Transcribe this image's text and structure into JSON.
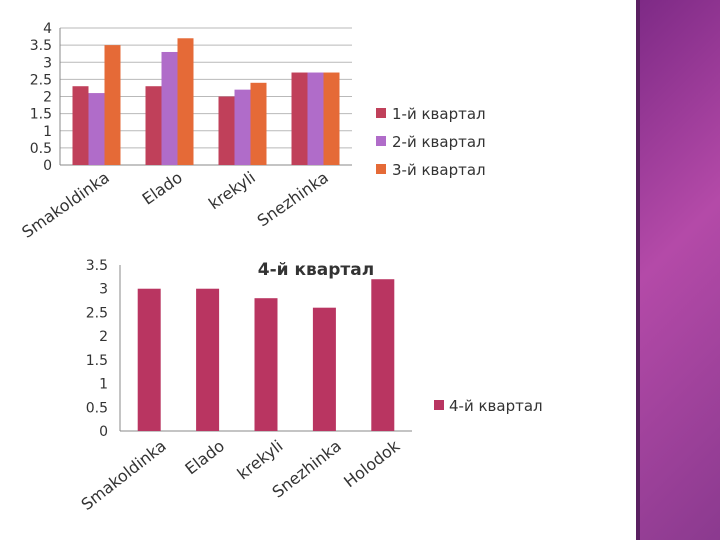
{
  "colors": {
    "q1": "#c0405a",
    "q2": "#b06cc9",
    "q3": "#e56a37",
    "q4": "#b93561",
    "grid": "#b9b9b9",
    "axis": "#888888",
    "text": "#333333",
    "side_bar": "#8e3a90"
  },
  "chart_data": [
    {
      "type": "bar",
      "categories": [
        "Smakoldinka",
        "Elado",
        "krekyli",
        "Snezhinka"
      ],
      "series": [
        {
          "name": "1-й квартал",
          "values": [
            2.3,
            2.3,
            2.0,
            2.7
          ]
        },
        {
          "name": "2-й квартал",
          "values": [
            2.1,
            3.3,
            2.2,
            2.7
          ]
        },
        {
          "name": "3-й квартал",
          "values": [
            3.5,
            3.7,
            2.4,
            2.7
          ]
        }
      ],
      "ylim": [
        0,
        4
      ],
      "yticks": [
        "0",
        "0.5",
        "1",
        "1.5",
        "2",
        "2.5",
        "3",
        "3.5",
        "4"
      ],
      "grid": true,
      "legend": "right"
    },
    {
      "type": "bar",
      "title": "4-й квартал",
      "categories": [
        "Smakoldinka",
        "Elado",
        "krekyli",
        "Snezhinka",
        "Holodok"
      ],
      "series": [
        {
          "name": "4-й квартал",
          "values": [
            3.0,
            3.0,
            2.8,
            2.6,
            3.2
          ]
        }
      ],
      "ylim": [
        0,
        3.5
      ],
      "yticks": [
        "0",
        "0.5",
        "1",
        "1.5",
        "2",
        "2.5",
        "3",
        "3.5"
      ],
      "grid": false,
      "legend": "right"
    }
  ]
}
